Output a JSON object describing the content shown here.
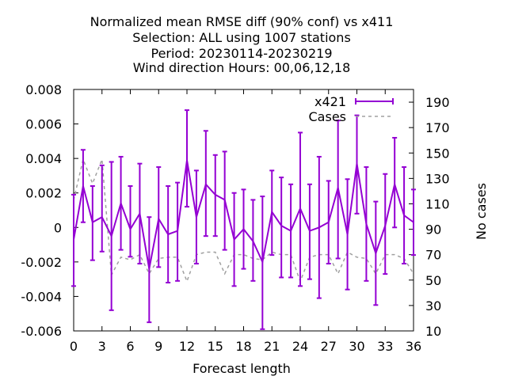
{
  "chart_data": {
    "type": "line",
    "title": [
      "Normalized mean RMSE diff (90% conf) vs x411",
      "Selection: ALL using  1007 stations",
      "Period: 20230114-20230219",
      "Wind direction   Hours:  00,06,12,18"
    ],
    "xlabel": "Forecast length",
    "ylabel": "",
    "y2label": "No cases",
    "xlim": [
      0,
      36
    ],
    "ylim": [
      -0.006,
      0.008
    ],
    "y2lim": [
      10,
      200
    ],
    "x_ticks": [
      "0",
      "3",
      "6",
      "9",
      "12",
      "15",
      "18",
      "21",
      "24",
      "27",
      "30",
      "33",
      "36"
    ],
    "y_ticks": [
      "-0.006",
      "-0.004",
      "-0.002",
      "0",
      "0.002",
      "0.004",
      "0.006",
      "0.008"
    ],
    "y2_ticks": [
      "10",
      "30",
      "50",
      "70",
      "90",
      "110",
      "130",
      "150",
      "170",
      "190"
    ],
    "legend_position": "top-right",
    "colors": {
      "x421": "#9400d3",
      "cases": "#a0a0a0"
    },
    "series": [
      {
        "name": "x421",
        "axis": "left",
        "style": "line-errorbars",
        "x": [
          0,
          1,
          2,
          3,
          4,
          5,
          6,
          7,
          8,
          9,
          10,
          11,
          12,
          13,
          14,
          15,
          16,
          17,
          18,
          19,
          20,
          21,
          22,
          23,
          24,
          25,
          26,
          27,
          28,
          29,
          30,
          31,
          32,
          33,
          34,
          35,
          36
        ],
        "y": [
          -0.0007,
          0.0024,
          0.0003,
          0.0006,
          -0.0005,
          0.0014,
          -0.0001,
          0.0008,
          -0.0024,
          0.0005,
          -0.0004,
          -0.0002,
          0.0039,
          0.0006,
          0.0025,
          0.0019,
          0.0016,
          -0.0007,
          -0.0001,
          -0.0008,
          -0.002,
          0.0009,
          0.0001,
          -0.0002,
          0.0011,
          -0.0002,
          0.0,
          0.0003,
          0.0023,
          -0.0004,
          0.0037,
          0.0002,
          -0.0015,
          0.0001,
          0.0025,
          0.0007,
          0.0003
        ],
        "y_low": [
          -0.0034,
          0.0003,
          -0.0019,
          -0.0014,
          -0.0048,
          -0.0013,
          -0.0017,
          -0.0021,
          -0.0055,
          -0.0023,
          -0.0032,
          -0.0031,
          0.0012,
          -0.0021,
          -0.0005,
          -0.0005,
          -0.0013,
          -0.0034,
          -0.0024,
          -0.0031,
          -0.0059,
          -0.0016,
          -0.0029,
          -0.0029,
          -0.0034,
          -0.003,
          -0.0041,
          -0.0021,
          -0.0018,
          -0.0036,
          0.0008,
          -0.0031,
          -0.0045,
          -0.0027,
          0.0,
          -0.0021,
          -0.0016
        ],
        "y_high": [
          0.0019,
          0.0045,
          0.0024,
          0.0036,
          0.0038,
          0.0041,
          0.0024,
          0.0037,
          0.0006,
          0.0035,
          0.0024,
          0.0026,
          0.0068,
          0.0033,
          0.0056,
          0.0042,
          0.0044,
          0.002,
          0.0022,
          0.0016,
          0.0018,
          0.0033,
          0.0029,
          0.0025,
          0.0055,
          0.0025,
          0.0041,
          0.0027,
          0.0062,
          0.0028,
          0.0065,
          0.0035,
          0.0015,
          0.0031,
          0.0052,
          0.0035,
          0.0022
        ]
      },
      {
        "name": "Cases",
        "axis": "right",
        "style": "dashed",
        "x": [
          0,
          1,
          2,
          3,
          4,
          5,
          6,
          7,
          8,
          9,
          10,
          11,
          12,
          13,
          14,
          15,
          16,
          17,
          18,
          19,
          20,
          21,
          22,
          23,
          24,
          25,
          26,
          27,
          28,
          29,
          30,
          31,
          32,
          33,
          34,
          35,
          36
        ],
        "y": [
          113,
          145,
          126,
          145,
          54,
          68,
          66,
          70,
          55,
          67,
          68,
          68,
          49,
          70,
          72,
          72,
          55,
          70,
          70,
          67,
          66,
          72,
          70,
          70,
          49,
          68,
          70,
          70,
          55,
          72,
          68,
          67,
          55,
          70,
          70,
          67,
          55
        ]
      }
    ]
  }
}
